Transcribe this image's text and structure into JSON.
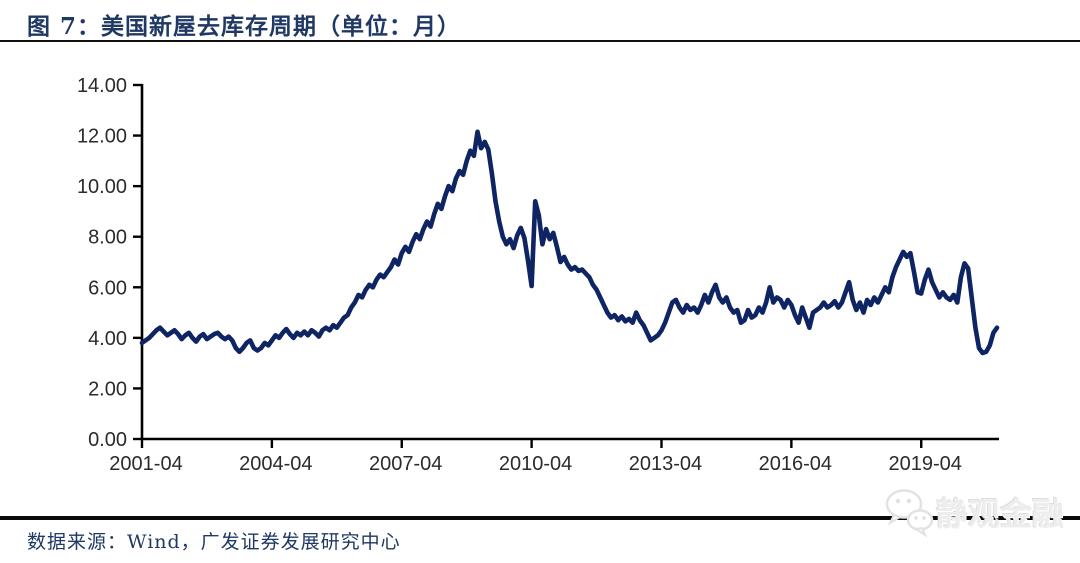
{
  "header": {
    "title": "图 7：美国新屋去库存周期（单位：月）",
    "title_color": "#1f3864"
  },
  "footer": {
    "source": "数据来源：Wind，广发证券发展研究中心"
  },
  "watermark": {
    "label": "静观金融",
    "icon": "wechat-icon"
  },
  "chart_data": {
    "type": "line",
    "title": "美国新屋去库存周期（单位：月）",
    "unit": "月",
    "xlabel": "",
    "ylabel": "",
    "ylim": [
      0,
      14
    ],
    "grid": false,
    "legend": "none",
    "line_color": "#0e2463",
    "axis_color": "#000000",
    "tick_label_color": "#2b2b2b",
    "y_ticks": [
      0,
      2,
      4,
      6,
      8,
      10,
      12,
      14
    ],
    "y_tick_labels": [
      "0.00",
      "2.00",
      "4.00",
      "6.00",
      "8.00",
      "10.00",
      "12.00",
      "14.00"
    ],
    "x_tick_labels": [
      "2001-04",
      "2004-04",
      "2007-04",
      "2010-04",
      "2013-04",
      "2016-04",
      "2019-04"
    ],
    "x_tick_month_index": [
      0,
      36,
      72,
      108,
      144,
      180,
      216
    ],
    "series": [
      {
        "name": "美国新屋去库存周期（月）",
        "frequency": "monthly",
        "x_start": "2001-04",
        "x_end": "2021-01",
        "values": [
          3.8,
          3.9,
          4.0,
          4.15,
          4.3,
          4.4,
          4.25,
          4.1,
          4.2,
          4.3,
          4.15,
          3.95,
          4.1,
          4.2,
          4.0,
          3.85,
          4.05,
          4.15,
          3.95,
          4.05,
          4.15,
          4.2,
          4.05,
          3.95,
          4.05,
          3.9,
          3.6,
          3.45,
          3.6,
          3.8,
          3.9,
          3.6,
          3.5,
          3.6,
          3.8,
          3.7,
          3.9,
          4.1,
          4.0,
          4.2,
          4.35,
          4.15,
          4.0,
          4.2,
          4.1,
          4.25,
          4.1,
          4.3,
          4.2,
          4.05,
          4.3,
          4.4,
          4.3,
          4.5,
          4.4,
          4.6,
          4.8,
          4.9,
          5.2,
          5.4,
          5.7,
          5.6,
          5.9,
          6.1,
          6.0,
          6.3,
          6.5,
          6.4,
          6.6,
          6.8,
          7.1,
          6.9,
          7.35,
          7.6,
          7.4,
          7.8,
          8.1,
          7.9,
          8.3,
          8.6,
          8.4,
          8.9,
          9.3,
          9.1,
          9.6,
          10.0,
          9.8,
          10.3,
          10.6,
          10.45,
          11.0,
          11.4,
          11.2,
          12.15,
          11.5,
          11.75,
          11.45,
          10.5,
          9.4,
          8.6,
          8.0,
          7.7,
          7.9,
          7.55,
          8.05,
          8.35,
          7.95,
          7.05,
          6.05,
          9.4,
          8.85,
          7.7,
          8.3,
          7.9,
          8.15,
          7.6,
          7.0,
          7.2,
          6.9,
          6.7,
          6.8,
          6.65,
          6.7,
          6.55,
          6.4,
          6.1,
          5.9,
          5.6,
          5.3,
          5.0,
          4.8,
          4.9,
          4.7,
          4.85,
          4.65,
          4.75,
          4.6,
          5.0,
          4.7,
          4.5,
          4.2,
          3.9,
          4.0,
          4.1,
          4.3,
          4.6,
          5.0,
          5.4,
          5.5,
          5.2,
          5.0,
          5.3,
          5.1,
          5.2,
          5.0,
          5.3,
          5.7,
          5.4,
          5.8,
          6.1,
          5.6,
          5.4,
          5.6,
          5.2,
          5.0,
          5.1,
          4.6,
          4.7,
          5.1,
          4.8,
          4.9,
          5.2,
          5.0,
          5.4,
          6.0,
          5.4,
          5.6,
          5.5,
          5.2,
          5.5,
          5.3,
          4.9,
          4.6,
          5.2,
          4.8,
          4.4,
          5.0,
          5.1,
          5.2,
          5.4,
          5.2,
          5.3,
          5.45,
          5.2,
          5.4,
          5.8,
          6.2,
          5.5,
          5.1,
          5.4,
          5.0,
          5.5,
          5.3,
          5.6,
          5.4,
          5.7,
          6.0,
          5.8,
          6.4,
          6.8,
          7.1,
          7.4,
          7.2,
          7.35,
          6.6,
          5.8,
          5.75,
          6.3,
          6.7,
          6.2,
          5.9,
          5.6,
          5.8,
          5.6,
          5.5,
          5.7,
          5.4,
          6.4,
          6.95,
          6.75,
          5.6,
          4.4,
          3.6,
          3.4,
          3.45,
          3.7,
          4.2,
          4.4
        ]
      }
    ]
  }
}
